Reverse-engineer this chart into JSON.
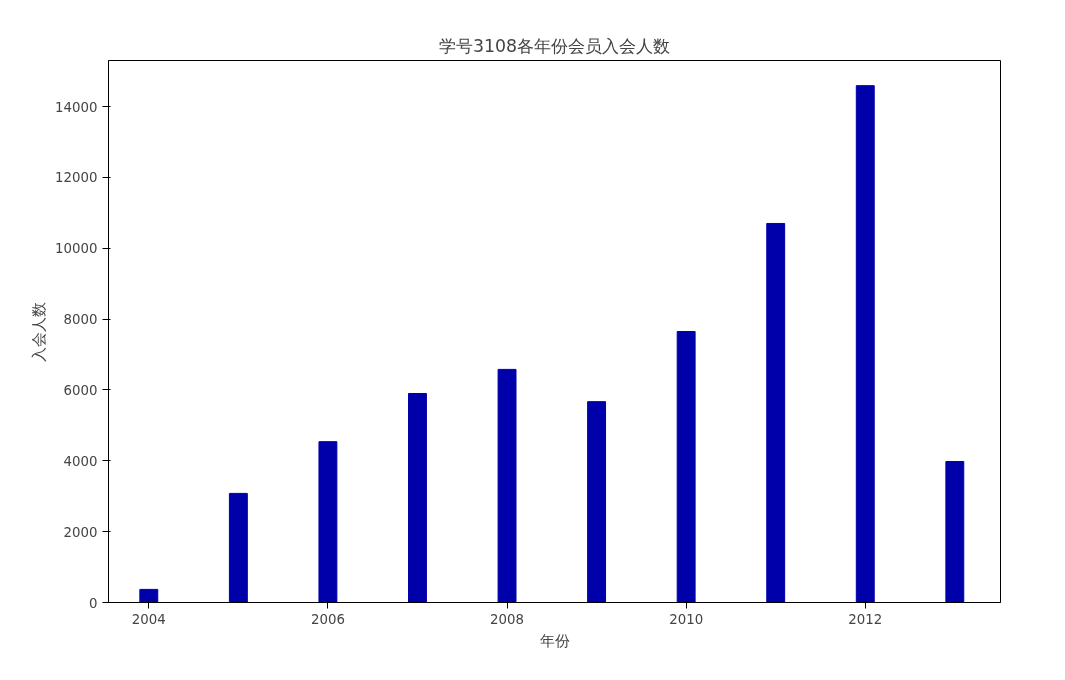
{
  "chart_data": {
    "type": "bar",
    "title": "学号3108各年份会员入会人数",
    "xlabel": "年份",
    "ylabel": "入会人数",
    "x": [
      2004,
      2005,
      2006,
      2007,
      2008,
      2009,
      2010,
      2011,
      2012,
      2013
    ],
    "values": [
      370,
      3080,
      4540,
      5900,
      6580,
      5670,
      7650,
      10700,
      14590,
      3980
    ],
    "color": "#0000aa",
    "xlim": [
      2003.55,
      2013.51
    ],
    "xticks": [
      2004,
      2006,
      2008,
      2010,
      2012
    ],
    "ylim": [
      0,
      15300
    ],
    "yticks": [
      0,
      2000,
      4000,
      6000,
      8000,
      10000,
      12000,
      14000
    ],
    "grid": false
  }
}
